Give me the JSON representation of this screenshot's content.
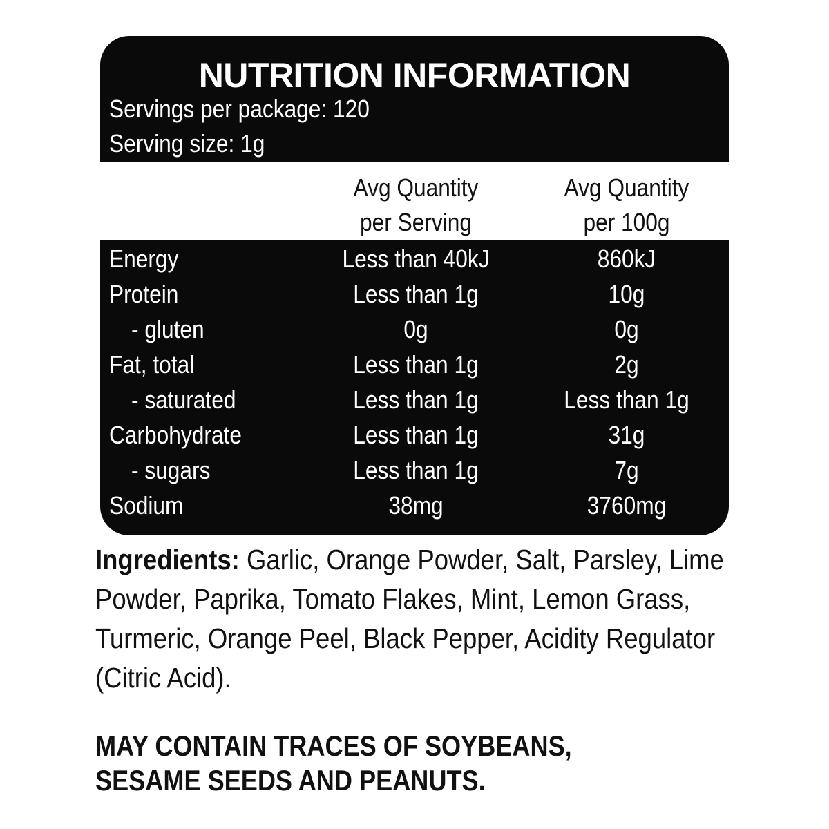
{
  "panel": {
    "title": "NUTRITION INFORMATION",
    "servings_per_package": "Servings per package: 120",
    "serving_size": "Serving size: 1g",
    "column_headers": [
      {
        "line1": "Avg Quantity",
        "line2": "per Serving"
      },
      {
        "line1": "Avg Quantity",
        "line2": "per 100g"
      }
    ],
    "rows": [
      {
        "name": "Energy",
        "per_serving": "Less than 40kJ",
        "per_100g": "860kJ"
      },
      {
        "name": "Protein",
        "per_serving": "Less than 1g",
        "per_100g": "10g"
      },
      {
        "name": "- gluten",
        "per_serving": "0g",
        "per_100g": "0g"
      },
      {
        "name": "Fat, total",
        "per_serving": "Less than 1g",
        "per_100g": "2g"
      },
      {
        "name": "- saturated",
        "per_serving": "Less than 1g",
        "per_100g": "Less than 1g"
      },
      {
        "name": "Carbohydrate",
        "per_serving": "Less than 1g",
        "per_100g": "31g"
      },
      {
        "name": "- sugars",
        "per_serving": "Less than 1g",
        "per_100g": "7g"
      },
      {
        "name": "Sodium",
        "per_serving": "38mg",
        "per_100g": "3760mg"
      }
    ]
  },
  "ingredients": {
    "label": "Ingredients:",
    "text": " Garlic, Orange Powder, Salt, Parsley, Lime Powder, Paprika, Tomato Flakes, Mint, Lemon Grass, Turmeric, Orange Peel, Black Pepper, Acidity Regulator (Citric Acid)."
  },
  "allergen": {
    "line1": "MAY CONTAIN TRACES OF SOYBEANS,",
    "line2": "SESAME SEEDS AND PEANUTS."
  },
  "colors": {
    "panel": "#0a0a0a",
    "text_on_panel": "#ffffff",
    "background": "#ffffff"
  }
}
